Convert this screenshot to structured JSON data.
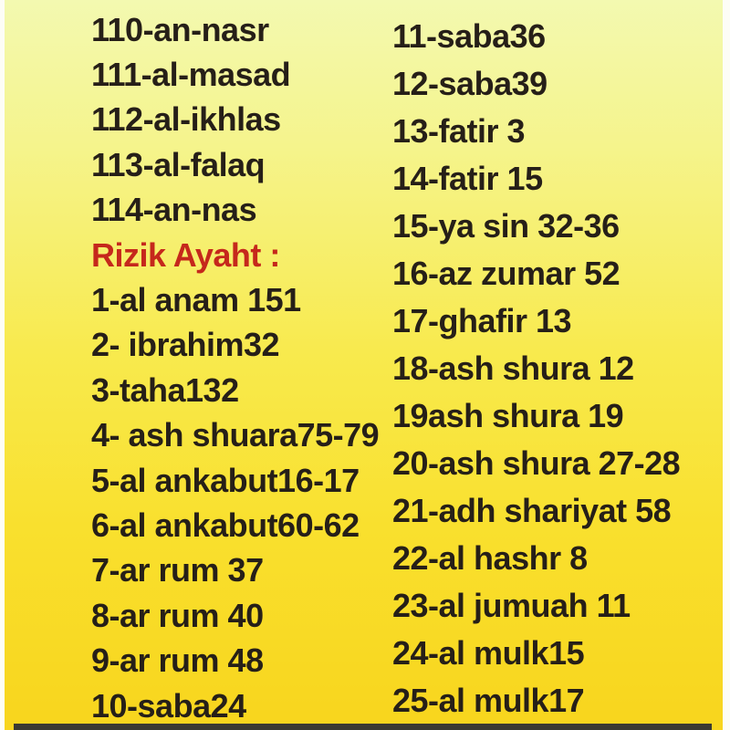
{
  "left_column": {
    "surah_items": [
      "110-an-nasr",
      "111-al-masad",
      "112-al-ikhlas",
      "113-al-falaq",
      "114-an-nas"
    ],
    "heading": "Rizik Ayaht :",
    "rizik_items": [
      "1-al anam 151",
      "2- ibrahim32",
      "3-taha132",
      "4- ash shuara75-79",
      "5-al ankabut16-17",
      "6-al ankabut60-62",
      "7-ar rum 37",
      "8-ar rum 40",
      "9-ar rum 48",
      "10-saba24"
    ]
  },
  "right_column": {
    "rizik_items": [
      "11-saba36",
      "12-saba39",
      "13-fatir 3",
      "14-fatir 15",
      "15-ya sin 32-36",
      "16-az zumar 52",
      "17-ghafir 13",
      "18-ash shura 12",
      "19ash shura 19",
      "20-ash shura 27-28",
      "21-adh shariyat 58",
      "22-al hashr 8",
      "23-al jumuah 11",
      "24-al mulk15",
      "25-al mulk17"
    ]
  },
  "colors": {
    "text": "#261f18",
    "heading_red": "#c5281c",
    "background_top": "#f3f9b0",
    "background_bottom": "#f8d51d",
    "bottom_band": "#3b3a32"
  }
}
